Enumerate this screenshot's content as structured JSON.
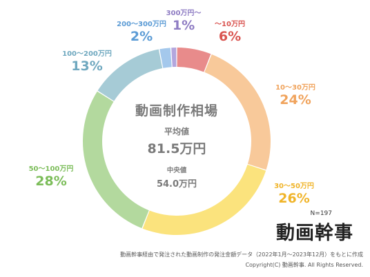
{
  "chart_data": {
    "type": "pie",
    "style": "donut",
    "title": "動画制作相場",
    "categories": [
      "〜10万円",
      "10〜30万円",
      "30〜50万円",
      "50〜100万円",
      "100〜200万円",
      "200〜300万円",
      "300万円〜"
    ],
    "values": [
      6,
      24,
      26,
      28,
      13,
      2,
      1
    ],
    "value_labels": [
      "6%",
      "24%",
      "26%",
      "28%",
      "13%",
      "2%",
      "1%"
    ],
    "colors": [
      "#e88b8b",
      "#f8c99a",
      "#fbe37d",
      "#b3d99e",
      "#a6cbd6",
      "#a4c8ec",
      "#b3a6dd"
    ],
    "label_colors": [
      "#d9534f",
      "#f0a35c",
      "#f0b429",
      "#7cbd5a",
      "#6fa8bf",
      "#5b9bd5",
      "#8e7cc3"
    ],
    "center": {
      "title": "動画制作相場",
      "average_label": "平均値",
      "average_value": "81.5万円",
      "median_label": "中央値",
      "median_value": "54.0万円"
    },
    "sample_size": "N=197"
  },
  "logo_text": "動画幹事",
  "footnote": "動画幹事経由で発注された動画制作の発注金額データ（2022年1月〜2023年12月）をもとに作成",
  "copyright": "Copyright(C) 動画幹事. All Rights Reserved."
}
